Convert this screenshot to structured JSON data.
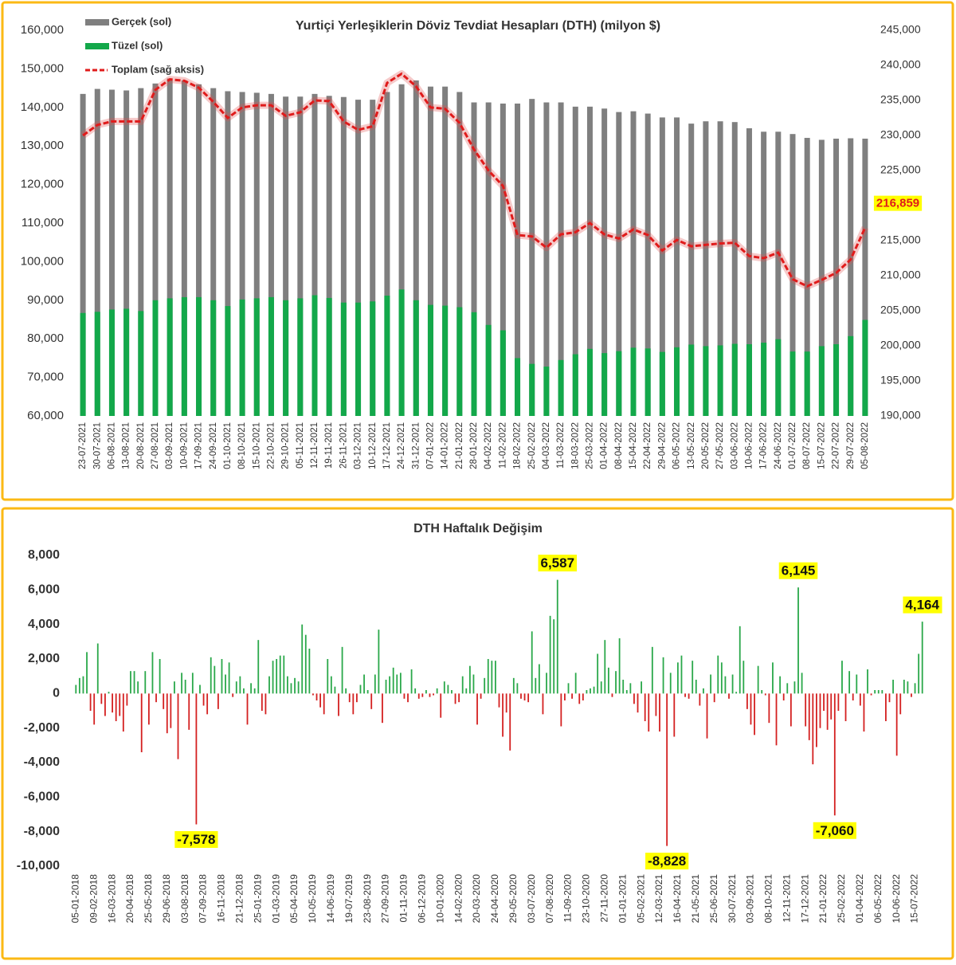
{
  "chart_data": [
    {
      "type": "combo",
      "title": "Yurtiçi Yerleşiklerin Döviz Tevdiat Hesapları (DTH) (milyon $)",
      "categories": [
        "23-07-2021",
        "30-07-2021",
        "06-08-2021",
        "13-08-2021",
        "20-08-2021",
        "27-08-2021",
        "03-09-2021",
        "10-09-2021",
        "17-09-2021",
        "24-09-2021",
        "01-10-2021",
        "08-10-2021",
        "15-10-2021",
        "22-10-2021",
        "29-10-2021",
        "05-11-2021",
        "12-11-2021",
        "19-11-2021",
        "26-11-2021",
        "03-12-2021",
        "10-12-2021",
        "17-12-2021",
        "24-12-2021",
        "31-12-2021",
        "07-01-2022",
        "14-01-2022",
        "21-01-2022",
        "28-01-2022",
        "04-02-2022",
        "11-02-2022",
        "18-02-2022",
        "25-02-2022",
        "04-03-2022",
        "11-03-2022",
        "18-03-2022",
        "25-03-2022",
        "01-04-2022",
        "08-04-2022",
        "15-04-2022",
        "22-04-2022",
        "29-04-2022",
        "06-05-2022",
        "13-05-2022",
        "20-05-2022",
        "27-05-2022",
        "03-06-2022",
        "10-06-2022",
        "17-06-2022",
        "24-06-2022",
        "01-07-2022",
        "08-07-2022",
        "15-07-2022",
        "22-07-2022",
        "29-07-2022",
        "05-08-2022"
      ],
      "series": [
        {
          "name": "Gerçek (sol)",
          "type": "bar",
          "color": "#7f7f7f",
          "values": [
            143500,
            144800,
            144600,
            144400,
            145000,
            146200,
            147500,
            147000,
            146000,
            145000,
            144200,
            144000,
            143800,
            143500,
            142800,
            142800,
            143500,
            143000,
            142700,
            142000,
            142000,
            144000,
            146000,
            147000,
            145400,
            145400,
            144000,
            141300,
            141300,
            141000,
            141000,
            142200,
            141300,
            141300,
            140200,
            140200,
            139700,
            138800,
            139000,
            138400,
            137400,
            137400,
            135800,
            136400,
            136400,
            136200,
            134600,
            133700,
            133700,
            133100,
            132100,
            131600,
            131900,
            132000,
            131900
          ]
        },
        {
          "name": "Tüzel (sol)",
          "type": "bar",
          "color": "#13a84a",
          "values": [
            86700,
            87000,
            87600,
            87800,
            87200,
            90000,
            90500,
            90800,
            90800,
            90000,
            88500,
            90200,
            90500,
            90800,
            90000,
            90500,
            91300,
            90600,
            89400,
            89400,
            89700,
            91200,
            92800,
            90000,
            88800,
            88600,
            88200,
            86900,
            83600,
            82200,
            75000,
            73500,
            72800,
            74500,
            76000,
            77400,
            76300,
            76800,
            77700,
            77500,
            76600,
            77800,
            78500,
            78100,
            78300,
            78700,
            78600,
            79000,
            79900,
            76700,
            76700,
            78100,
            78600,
            80700,
            84900
          ]
        },
        {
          "name": "Toplam (sağ aksis)",
          "type": "line",
          "axis": "y2",
          "color": "#e01b1b",
          "values": [
            230000,
            231500,
            232000,
            232000,
            232000,
            236500,
            238000,
            237800,
            236800,
            234800,
            232500,
            234000,
            234300,
            234300,
            232800,
            233300,
            235000,
            234900,
            232000,
            230800,
            231300,
            237500,
            238800,
            237000,
            234000,
            233800,
            231800,
            228000,
            225000,
            222800,
            215800,
            215600,
            214000,
            215900,
            216200,
            217500,
            215900,
            215300,
            216600,
            215800,
            213600,
            215100,
            214200,
            214400,
            214600,
            214700,
            212800,
            212500,
            213300,
            209500,
            208500,
            209400,
            210400,
            212300,
            216859
          ],
          "value_labels": [
            null,
            null,
            null,
            null,
            null,
            null,
            null,
            null,
            null,
            null,
            null,
            null,
            null,
            null,
            null,
            null,
            null,
            null,
            null,
            null,
            null,
            null,
            null,
            null,
            null,
            null,
            null,
            null,
            null,
            null,
            null,
            null,
            null,
            null,
            null,
            null,
            null,
            null,
            null,
            null,
            null,
            null,
            null,
            null,
            null,
            null,
            null,
            null,
            null,
            null,
            null,
            null,
            null,
            null,
            "216,859"
          ]
        }
      ],
      "ylim": [
        60000,
        160000
      ],
      "yticks": [
        {
          "value": 60000,
          "label": "60,000"
        },
        {
          "value": 70000,
          "label": "70,000"
        },
        {
          "value": 80000,
          "label": "80,000"
        },
        {
          "value": 90000,
          "label": "90,000"
        },
        {
          "value": 100000,
          "label": "100,000"
        },
        {
          "value": 110000,
          "label": "110,000"
        },
        {
          "value": 120000,
          "label": "120,000"
        },
        {
          "value": 130000,
          "label": "130,000"
        },
        {
          "value": 140000,
          "label": "140,000"
        },
        {
          "value": 150000,
          "label": "150,000"
        },
        {
          "value": 160000,
          "label": "160,000"
        }
      ],
      "y2lim": [
        190000,
        245000
      ],
      "y2ticks": [
        {
          "value": 190000,
          "label": "190,000"
        },
        {
          "value": 195000,
          "label": "195,000"
        },
        {
          "value": 200000,
          "label": "200,000"
        },
        {
          "value": 205000,
          "label": "205,000"
        },
        {
          "value": 210000,
          "label": "210,000"
        },
        {
          "value": 215000,
          "label": "215,000"
        },
        {
          "value": 220000,
          "label": "220,000"
        },
        {
          "value": 225000,
          "label": "225,000"
        },
        {
          "value": 230000,
          "label": "230,000"
        },
        {
          "value": 235000,
          "label": "235,000"
        },
        {
          "value": 240000,
          "label": "240,000"
        },
        {
          "value": 245000,
          "label": "245,000"
        }
      ]
    },
    {
      "type": "bar",
      "title": "DTH Haftalık Değişim",
      "categories": [
        "05-01-2018",
        null,
        null,
        null,
        null,
        "09-02-2018",
        null,
        null,
        null,
        null,
        "16-03-2018",
        null,
        null,
        null,
        null,
        "20-04-2018",
        null,
        null,
        null,
        null,
        "25-05-2018",
        null,
        null,
        null,
        null,
        "29-06-2018",
        null,
        null,
        null,
        null,
        "03-08-2018",
        null,
        null,
        null,
        null,
        "07-09-2018",
        null,
        null,
        null,
        null,
        "16-11-2018",
        null,
        null,
        null,
        null,
        "21-12-2018",
        null,
        null,
        null,
        null,
        "25-01-2019",
        null,
        null,
        null,
        null,
        "01-03-2019",
        null,
        null,
        null,
        null,
        "05-04-2019",
        null,
        null,
        null,
        null,
        "10-05-2019",
        null,
        null,
        null,
        null,
        "14-06-2019",
        null,
        null,
        null,
        null,
        "19-07-2019",
        null,
        null,
        null,
        null,
        "23-08-2019",
        null,
        null,
        null,
        null,
        "27-09-2019",
        null,
        null,
        null,
        null,
        "01-11-2019",
        null,
        null,
        null,
        null,
        "06-12-2019",
        null,
        null,
        null,
        null,
        "10-01-2020",
        null,
        null,
        null,
        null,
        "14-02-2020",
        null,
        null,
        null,
        null,
        "20-03-2020",
        null,
        null,
        null,
        null,
        "24-04-2020",
        null,
        null,
        null,
        null,
        "29-05-2020",
        null,
        null,
        null,
        null,
        "03-07-2020",
        null,
        null,
        null,
        null,
        "07-08-2020",
        null,
        null,
        null,
        null,
        "11-09-2020",
        null,
        null,
        null,
        null,
        "23-10-2020",
        null,
        null,
        null,
        null,
        "27-11-2020",
        null,
        null,
        null,
        null,
        "01-01-2021",
        null,
        null,
        null,
        null,
        "05-02-2021",
        null,
        null,
        null,
        null,
        "12-03-2021",
        null,
        null,
        null,
        null,
        "16-04-2021",
        null,
        null,
        null,
        null,
        "21-05-2021",
        null,
        null,
        null,
        null,
        "25-06-2021",
        null,
        null,
        null,
        null,
        "30-07-2021",
        null,
        null,
        null,
        null,
        "03-09-2021",
        null,
        null,
        null,
        null,
        "08-10-2021",
        null,
        null,
        null,
        null,
        "12-11-2021",
        null,
        null,
        null,
        null,
        "17-12-2021",
        null,
        null,
        null,
        null,
        "21-01-2022",
        null,
        null,
        null,
        null,
        "25-02-2022",
        null,
        null,
        null,
        null,
        "01-04-2022",
        null,
        null,
        null,
        null,
        "06-05-2022",
        null,
        null,
        null,
        null,
        "10-06-2022",
        null,
        null,
        null,
        null,
        "15-07-2022",
        null,
        null
      ],
      "values": [
        500,
        900,
        1000,
        2400,
        -1000,
        -1800,
        2900,
        -600,
        -1300,
        100,
        -1100,
        -1600,
        -1300,
        -2200,
        -700,
        1300,
        1300,
        700,
        -3400,
        1300,
        -1800,
        2400,
        -500,
        2000,
        -900,
        -2300,
        -2000,
        700,
        -3800,
        1200,
        800,
        -2100,
        1200,
        -7578,
        500,
        -700,
        -1200,
        2100,
        1600,
        -900,
        2000,
        1100,
        1800,
        -200,
        700,
        1000,
        300,
        -1800,
        600,
        300,
        3100,
        -1000,
        -1200,
        1000,
        1900,
        2000,
        2200,
        2200,
        1000,
        600,
        900,
        700,
        4000,
        3400,
        2600,
        -100,
        -400,
        -800,
        -1200,
        2000,
        1000,
        400,
        -1300,
        2700,
        300,
        -500,
        -1200,
        -500,
        500,
        1100,
        200,
        -900,
        1100,
        3700,
        -1700,
        800,
        1000,
        1500,
        1100,
        1200,
        -300,
        -500,
        1400,
        300,
        -300,
        -200,
        200,
        -200,
        -100,
        300,
        -1400,
        700,
        500,
        200,
        -600,
        -500,
        1000,
        300,
        1600,
        1100,
        -1800,
        -300,
        900,
        2000,
        1900,
        1900,
        -800,
        -2500,
        -1100,
        -3300,
        900,
        600,
        -300,
        -400,
        -500,
        3600,
        900,
        1700,
        -1200,
        1200,
        4500,
        4300,
        6587,
        -1900,
        -400,
        600,
        -300,
        1200,
        -600,
        -400,
        200,
        300,
        400,
        2300,
        700,
        3100,
        1500,
        -200,
        1300,
        3200,
        800,
        200,
        600,
        -600,
        -1100,
        700,
        -1600,
        -2200,
        2700,
        -1300,
        -2200,
        2100,
        -8828,
        1200,
        -2500,
        1800,
        2200,
        -200,
        -300,
        1900,
        800,
        -700,
        300,
        -2600,
        1100,
        -500,
        2200,
        1800,
        1000,
        -300,
        1100,
        100,
        3900,
        1900,
        -900,
        -1800,
        -2400,
        1600,
        200,
        -100,
        -1700,
        1800,
        -3000,
        1000,
        -400,
        600,
        -1900,
        700,
        6145,
        1200,
        -1900,
        -2700,
        -4100,
        -3100,
        -2000,
        -1000,
        -2100,
        -1500,
        -7060,
        -1000,
        1900,
        -1600,
        1300,
        -400,
        1100,
        -700,
        -2200,
        1400,
        -100,
        200,
        200,
        200,
        -1600,
        -500,
        800,
        -3600,
        -1200,
        800,
        700,
        -200,
        600,
        2300,
        4164
      ],
      "value_labels": [
        null,
        null,
        null,
        null,
        null,
        null,
        null,
        null,
        null,
        null,
        null,
        null,
        null,
        null,
        null,
        null,
        null,
        null,
        null,
        null,
        null,
        null,
        null,
        null,
        null,
        null,
        null,
        null,
        null,
        null,
        null,
        null,
        null,
        "-7,578",
        null,
        null,
        null,
        null,
        null,
        null,
        null,
        null,
        null,
        null,
        null,
        null,
        null,
        null,
        null,
        null,
        null,
        null,
        null,
        null,
        null,
        null,
        null,
        null,
        null,
        null,
        null,
        null,
        null,
        null,
        null,
        null,
        null,
        null,
        null,
        null,
        null,
        null,
        null,
        null,
        null,
        null,
        null,
        null,
        null,
        null,
        null,
        null,
        null,
        null,
        null,
        null,
        null,
        null,
        null,
        null,
        null,
        null,
        null,
        null,
        null,
        null,
        null,
        null,
        null,
        null,
        null,
        null,
        null,
        null,
        null,
        null,
        null,
        null,
        null,
        null,
        null,
        null,
        null,
        null,
        null,
        null,
        null,
        null,
        null,
        null,
        null,
        null,
        null,
        null,
        null,
        null,
        null,
        null,
        null,
        null,
        null,
        null,
        "6,587",
        null,
        null,
        null,
        null,
        null,
        null,
        null,
        null,
        null,
        null,
        null,
        null,
        null,
        null,
        null,
        null,
        null,
        null,
        null,
        null,
        null,
        null,
        null,
        null,
        null,
        null,
        null,
        null,
        null,
        "-8,828",
        null,
        null,
        null,
        null,
        null,
        null,
        null,
        null,
        null,
        null,
        null,
        null,
        null,
        null,
        null,
        null,
        null,
        null,
        null,
        null,
        null,
        null,
        null,
        null,
        null,
        null,
        null,
        null,
        null,
        null,
        null,
        null,
        null,
        null,
        null,
        "6,145",
        null,
        null,
        null,
        null,
        null,
        null,
        null,
        null,
        null,
        "-7,060",
        null,
        null,
        null,
        null,
        null,
        null,
        null,
        null,
        null,
        null,
        null,
        null,
        null,
        null,
        null,
        null,
        null,
        null,
        null,
        null,
        null,
        null,
        null,
        "4,164"
      ],
      "positive_color": "#2aa84a",
      "negative_color": "#d42020",
      "ylim": [
        -10000,
        8000
      ],
      "yticks": [
        {
          "value": -10000,
          "label": "-10,000"
        },
        {
          "value": -8000,
          "label": "-8,000"
        },
        {
          "value": -6000,
          "label": "-6,000"
        },
        {
          "value": -4000,
          "label": "-4,000"
        },
        {
          "value": -2000,
          "label": "-2,000"
        },
        0,
        {
          "value": 2000,
          "label": "2,000"
        },
        {
          "value": 4000,
          "label": "4,000"
        },
        {
          "value": 6000,
          "label": "6,000"
        },
        {
          "value": 8000,
          "label": "8,000"
        }
      ]
    }
  ]
}
